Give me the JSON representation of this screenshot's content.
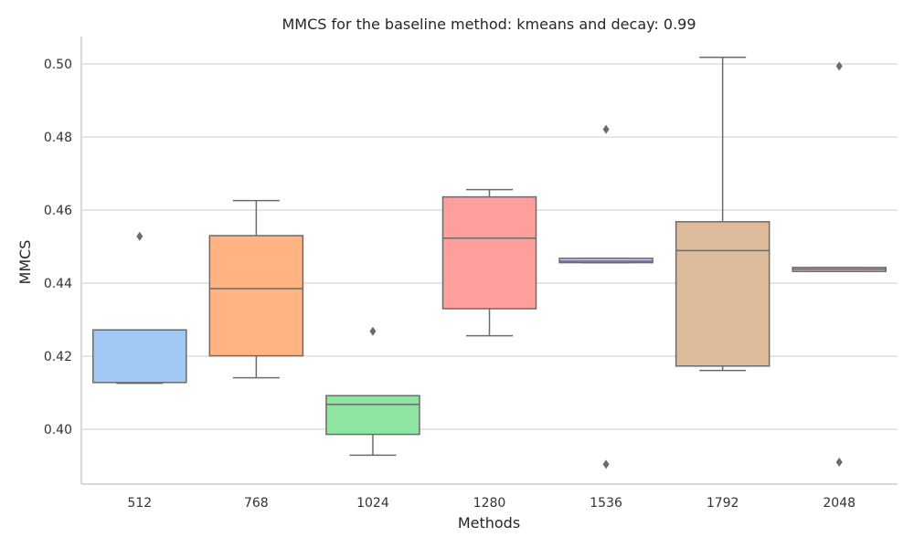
{
  "chart_data": {
    "type": "box",
    "title": "MMCS for the baseline method: kmeans and decay: 0.99",
    "xlabel": "Methods",
    "ylabel": "MMCS",
    "ylim": [
      0.385,
      0.5075
    ],
    "yticks": [
      "0.40",
      "0.42",
      "0.44",
      "0.46",
      "0.48",
      "0.50"
    ],
    "grid": "horizontal",
    "categories": [
      "512",
      "768",
      "1024",
      "1280",
      "1536",
      "1792",
      "2048"
    ],
    "boxes": [
      {
        "category": "512",
        "color": "#a1c9f4",
        "q1": 0.4128,
        "median": 0.4272,
        "q3": 0.4272,
        "whisker_low": 0.4126,
        "whisker_high": 0.4272,
        "outliers": [
          0.4528
        ]
      },
      {
        "category": "768",
        "color": "#ffb482",
        "q1": 0.4201,
        "median": 0.4385,
        "q3": 0.453,
        "whisker_low": 0.4141,
        "whisker_high": 0.4626,
        "outliers": []
      },
      {
        "category": "1024",
        "color": "#8de5a1",
        "q1": 0.3986,
        "median": 0.4068,
        "q3": 0.4092,
        "whisker_low": 0.3929,
        "whisker_high": 0.4092,
        "outliers": [
          0.4268
        ]
      },
      {
        "category": "1280",
        "color": "#ff9f9b",
        "q1": 0.433,
        "median": 0.4523,
        "q3": 0.4636,
        "whisker_low": 0.4256,
        "whisker_high": 0.4656,
        "outliers": []
      },
      {
        "category": "1536",
        "color": "#d0bbff",
        "q1": 0.4456,
        "median": 0.446,
        "q3": 0.4468,
        "whisker_low": 0.4456,
        "whisker_high": 0.4468,
        "outliers": [
          0.4821,
          0.3904
        ]
      },
      {
        "category": "1792",
        "color": "#debb9b",
        "q1": 0.4173,
        "median": 0.4489,
        "q3": 0.4568,
        "whisker_low": 0.4161,
        "whisker_high": 0.5018,
        "outliers": []
      },
      {
        "category": "2048",
        "color": "#fab0e4",
        "q1": 0.4432,
        "median": 0.4438,
        "q3": 0.4443,
        "whisker_low": 0.4432,
        "whisker_high": 0.4443,
        "outliers": [
          0.4994,
          0.391
        ]
      }
    ],
    "line_color": "#6b6b6b",
    "grid_color": "#cccccc"
  }
}
